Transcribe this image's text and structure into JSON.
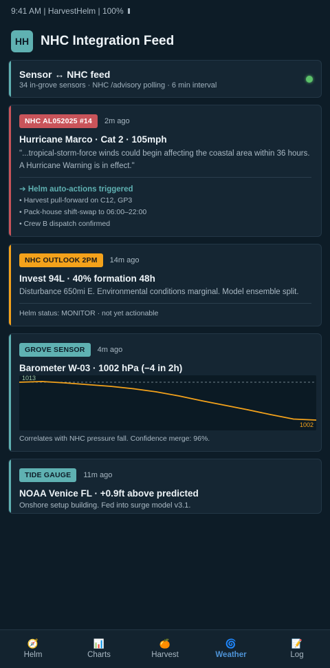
{
  "status_bar": {
    "text": "9:41 AM | HarvestHelm | 100%"
  },
  "header": {
    "logo": "HH",
    "title": "NHC Integration Feed"
  },
  "sensor_feed": {
    "title": "Sensor ↔ NHC feed",
    "subtitle": "34 in-grove sensors · NHC /advisory polling · 6 min interval",
    "status_color": "#5cc16a"
  },
  "cards": {
    "advisory": {
      "tag": "NHC AL052025 #14",
      "tag_color": "#c9545a",
      "ago": "2m ago",
      "title": "Hurricane Marco · Cat 2 · 105mph",
      "quote": "\"...tropical-storm-force winds could begin affecting the coastal area within 36 hours. A Hurricane Warning is in effect.\"",
      "actions_title": "➔ Helm auto-actions triggered",
      "actions": [
        "• Harvest pull-forward on C12, GP3",
        "• Pack-house shift-swap to 06:00–22:00",
        "• Crew B dispatch confirmed"
      ]
    },
    "outlook": {
      "tag": "NHC OUTLOOK 2PM",
      "tag_color": "#f4a21b",
      "ago": "14m ago",
      "title": "Invest 94L · 40% formation 48h",
      "body": "Disturbance 650mi E. Environmental conditions marginal. Model ensemble split.",
      "status": "Helm status: MONITOR · not yet actionable"
    },
    "barometer": {
      "tag": "GROVE SENSOR",
      "tag_color": "#5fb1b2",
      "ago": "4m ago",
      "title": "Barometer W-03 · 1002 hPa (−4 in 2h)",
      "footer": "Correlates with NHC pressure fall. Confidence merge: 96%."
    },
    "tide": {
      "tag": "TIDE GAUGE",
      "tag_color": "#5fb1b2",
      "ago": "11m ago",
      "title": "NOAA Venice FL · +0.9ft above predicted",
      "body": "Onshore setup building. Fed into surge model v3.1."
    }
  },
  "chart_data": {
    "type": "line",
    "series": [
      {
        "values": [
          1013,
          1013.2,
          1012.8,
          1012.3,
          1011.8,
          1011.1,
          1010.2,
          1009.0,
          1007.6,
          1006.3,
          1005.0,
          1003.6,
          1002.3,
          1002.0
        ]
      }
    ],
    "reference_line": {
      "value": 1013,
      "label": "1013",
      "style": "dashed"
    },
    "end_label": "1002",
    "ylim": [
      999,
      1015
    ],
    "line_color": "#f4a21b",
    "reference_color": "#8a9ba6"
  },
  "tabs": [
    {
      "icon": "compass-icon",
      "glyph": "🧭",
      "label": "Helm",
      "active": false
    },
    {
      "icon": "chart-icon",
      "glyph": "📊",
      "label": "Charts",
      "active": false
    },
    {
      "icon": "orange-icon",
      "glyph": "🍊",
      "label": "Harvest",
      "active": false
    },
    {
      "icon": "cyclone-icon",
      "glyph": "🌀",
      "label": "Weather",
      "active": true
    },
    {
      "icon": "memo-icon",
      "glyph": "📝",
      "label": "Log",
      "active": false
    }
  ]
}
